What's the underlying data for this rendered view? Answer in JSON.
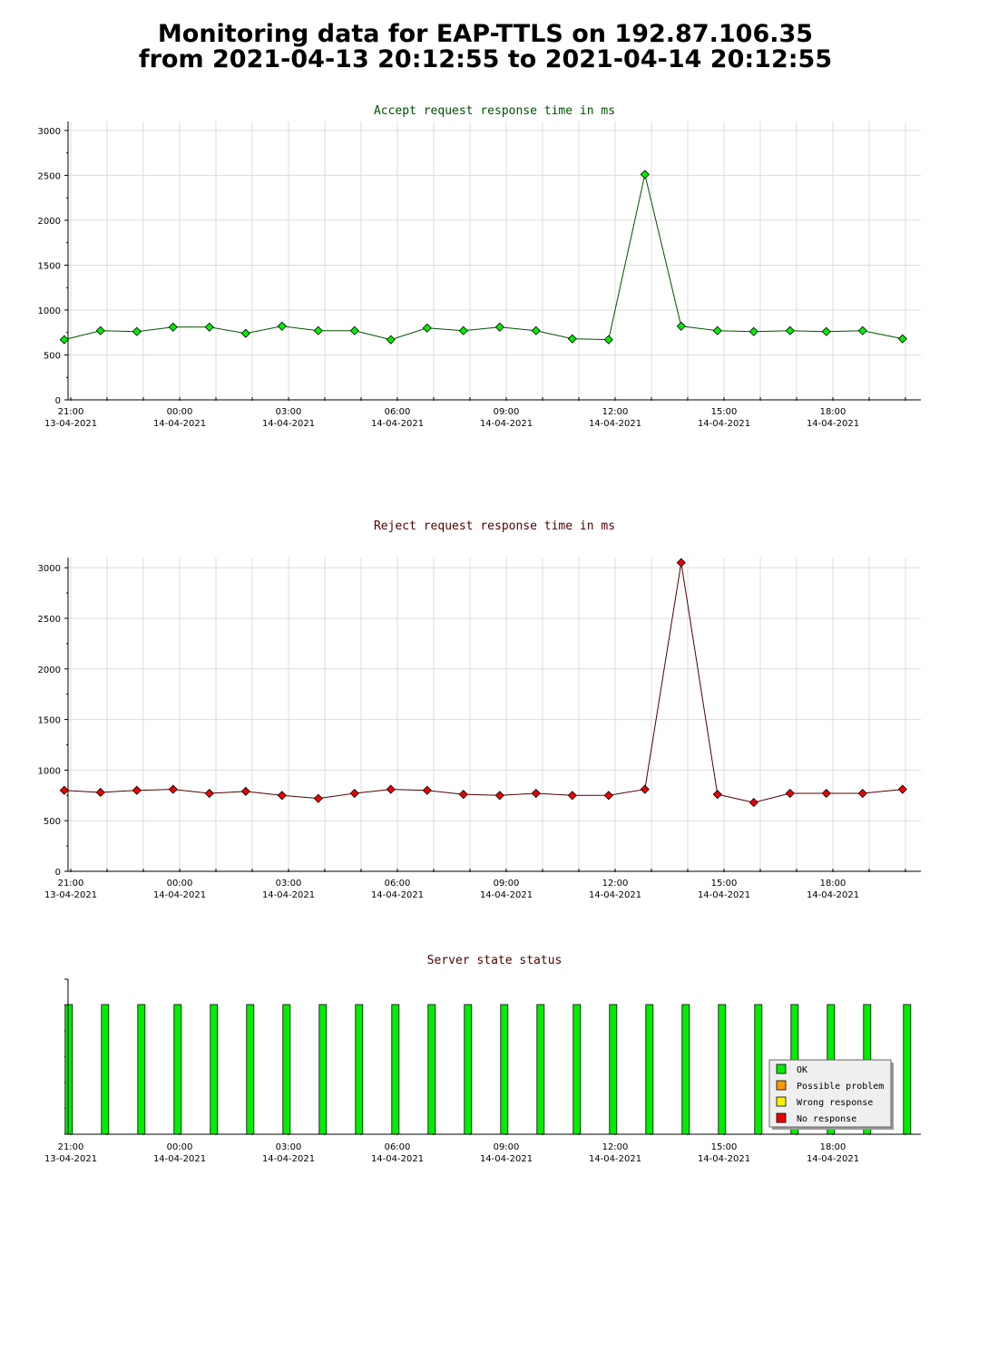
{
  "header": {
    "title_line1": "Monitoring data for EAP-TTLS on 192.87.106.35",
    "title_line2": "from 2021-04-13 20:12:55 to 2021-04-14 20:12:55"
  },
  "chart_data": [
    {
      "type": "line",
      "title": "Accept request response time in ms",
      "title_color": "#005000",
      "line_color": "#005000",
      "marker_color": "#00ee00",
      "ylim": [
        0,
        3100
      ],
      "yticks": [
        0,
        500,
        1000,
        1500,
        2000,
        2500,
        3000
      ],
      "x_hours_from_21": [
        -0.18,
        0.82,
        1.82,
        2.82,
        3.82,
        4.82,
        5.82,
        6.82,
        7.82,
        8.82,
        9.82,
        10.82,
        11.82,
        12.82,
        13.82,
        14.82,
        15.82,
        16.82,
        17.82,
        18.82,
        19.82,
        20.82,
        21.82,
        22.92
      ],
      "values": [
        670,
        770,
        760,
        810,
        810,
        740,
        820,
        770,
        770,
        670,
        800,
        770,
        810,
        770,
        680,
        670,
        2510,
        820,
        770,
        760,
        770,
        760,
        770,
        680
      ],
      "xtick_labels": [
        [
          "21:00",
          "13-04-2021"
        ],
        [
          "00:00",
          "14-04-2021"
        ],
        [
          "03:00",
          "14-04-2021"
        ],
        [
          "06:00",
          "14-04-2021"
        ],
        [
          "09:00",
          "14-04-2021"
        ],
        [
          "12:00",
          "14-04-2021"
        ],
        [
          "15:00",
          "14-04-2021"
        ],
        [
          "18:00",
          "14-04-2021"
        ]
      ],
      "grid": true
    },
    {
      "type": "line",
      "title": "Reject request response time in ms",
      "title_color": "#500000",
      "line_color": "#500000",
      "marker_color": "#ee0000",
      "ylim": [
        0,
        3100
      ],
      "yticks": [
        0,
        500,
        1000,
        1500,
        2000,
        2500,
        3000
      ],
      "x_hours_from_21": [
        -0.18,
        0.82,
        1.82,
        2.82,
        3.82,
        4.82,
        5.82,
        6.82,
        7.82,
        8.82,
        9.82,
        10.82,
        11.82,
        12.82,
        13.82,
        14.82,
        15.82,
        16.82,
        17.82,
        18.82,
        19.82,
        20.82,
        21.82,
        22.92
      ],
      "values": [
        800,
        780,
        800,
        810,
        770,
        790,
        750,
        720,
        770,
        810,
        800,
        760,
        750,
        770,
        750,
        750,
        810,
        3050,
        760,
        680,
        770,
        770,
        770,
        810
      ],
      "xtick_labels": [
        [
          "21:00",
          "13-04-2021"
        ],
        [
          "00:00",
          "14-04-2021"
        ],
        [
          "03:00",
          "14-04-2021"
        ],
        [
          "06:00",
          "14-04-2021"
        ],
        [
          "09:00",
          "14-04-2021"
        ],
        [
          "12:00",
          "14-04-2021"
        ],
        [
          "15:00",
          "14-04-2021"
        ],
        [
          "18:00",
          "14-04-2021"
        ]
      ],
      "grid": true
    },
    {
      "type": "bar",
      "title": "Server state status",
      "title_color": "#500000",
      "x_hours_from_21": [
        -0.18,
        0.82,
        1.82,
        2.82,
        3.82,
        4.82,
        5.82,
        6.82,
        7.82,
        8.82,
        9.82,
        10.82,
        11.82,
        12.82,
        13.82,
        14.82,
        15.82,
        16.82,
        17.82,
        18.82,
        19.82,
        20.82,
        21.82,
        22.92
      ],
      "states": [
        "OK",
        "OK",
        "OK",
        "OK",
        "OK",
        "OK",
        "OK",
        "OK",
        "OK",
        "OK",
        "OK",
        "OK",
        "OK",
        "OK",
        "OK",
        "OK",
        "OK",
        "OK",
        "OK",
        "OK",
        "OK",
        "OK",
        "OK",
        "OK"
      ],
      "xtick_labels": [
        [
          "21:00",
          "13-04-2021"
        ],
        [
          "00:00",
          "14-04-2021"
        ],
        [
          "03:00",
          "14-04-2021"
        ],
        [
          "06:00",
          "14-04-2021"
        ],
        [
          "09:00",
          "14-04-2021"
        ],
        [
          "12:00",
          "14-04-2021"
        ],
        [
          "15:00",
          "14-04-2021"
        ],
        [
          "18:00",
          "14-04-2021"
        ]
      ],
      "legend": {
        "placement": "bottom-right",
        "items": [
          {
            "label": "OK",
            "color": "#00ee00"
          },
          {
            "label": "Possible problem",
            "color": "#ff9900"
          },
          {
            "label": "Wrong response",
            "color": "#ffee00"
          },
          {
            "label": "No response",
            "color": "#ee0000"
          }
        ]
      }
    }
  ]
}
